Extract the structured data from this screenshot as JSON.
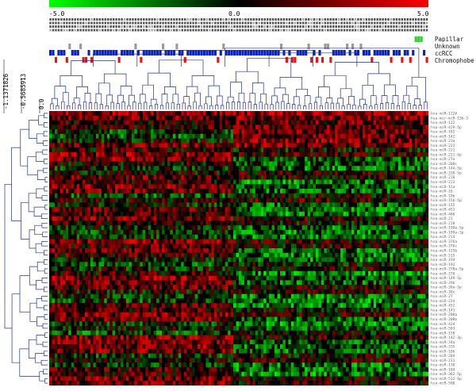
{
  "chart_data": {
    "type": "heatmap",
    "title": "",
    "colorbar": {
      "min_label": "-5.0",
      "mid_label": "0.0",
      "max_label": "5.0",
      "range": [
        -5.0,
        5.0
      ],
      "colors": {
        "low": "#00ff00",
        "mid": "#000000",
        "high": "#ff0000"
      }
    },
    "sample_count": 138,
    "mirna_count": 60,
    "annotation_legend": [
      {
        "label": "Papillar",
        "color": "#33cc33"
      },
      {
        "label": "Unknown",
        "color": "#999999"
      },
      {
        "label": "ccRCC",
        "color": "#0022cc"
      },
      {
        "label": "Chromophobe",
        "color": "#ee1111"
      }
    ],
    "row_dendrogram_axis": {
      "tick_labels": [
        "-1.1371826",
        "-0.5685913",
        "0.0"
      ],
      "values": [
        -1.1371826,
        -0.5685913,
        0.0
      ]
    },
    "row_labels": [
      "hsa-miR-122#",
      "hsa-mir-miR-15b-3",
      "hsa-miR-122",
      "hsa-miR-429-5p",
      "hsa-miR-182",
      "hsa-miR-142",
      "hsa-miR-23a",
      "hsa-miR-222",
      "hsa-miR-221",
      "hsa-miR-221-5p",
      "hsa-miR-27a",
      "hsa-miR-200c",
      "hsa-miR-144-5p",
      "hsa-miR-338-5p",
      "hsa-miR-210",
      "hsa-miR-223",
      "hsa-miR-15a",
      "hsa-miR-16",
      "hsa-miR-19b",
      "hsa-miR-15b-5p",
      "hsa-miR-155",
      "hsa-miR-451",
      "hsa-miR-486",
      "hsa-miR-21",
      "hsa-miR-218",
      "hsa-miR-199a-5p",
      "hsa-miR-199a-3p",
      "hsa-miR-214",
      "hsa-miR-376a",
      "hsa-miR-376c",
      "hsa-miR-125b",
      "hsa-miR-215",
      "hsa-miR-194",
      "hsa-miR-192",
      "hsa-miR-378a-5p",
      "hsa-miR-378",
      "hsa-miR-149-5p",
      "hsa-miR-29b",
      "hsa-miR-30a-5p",
      "hsa-miR-30c",
      "hsa-miR-27",
      "hsa-miR-224",
      "hsa-miR-452",
      "hsa-miR-141",
      "hsa-miR-200a",
      "hsa-miR-200b",
      "hsa-miR-424",
      "hsa-miR-503",
      "hsa-miR-150",
      "hsa-miR-142-3p",
      "hsa-miR-34a",
      "hsa-miR-335",
      "hsa-miR-10b",
      "hsa-miR-204",
      "hsa-miR-211",
      "hsa-miR-138",
      "hsa-miR-184",
      "hsa-miR-362-5p",
      "hsa-miR-532-5p",
      "hsa-miR-500"
    ]
  }
}
